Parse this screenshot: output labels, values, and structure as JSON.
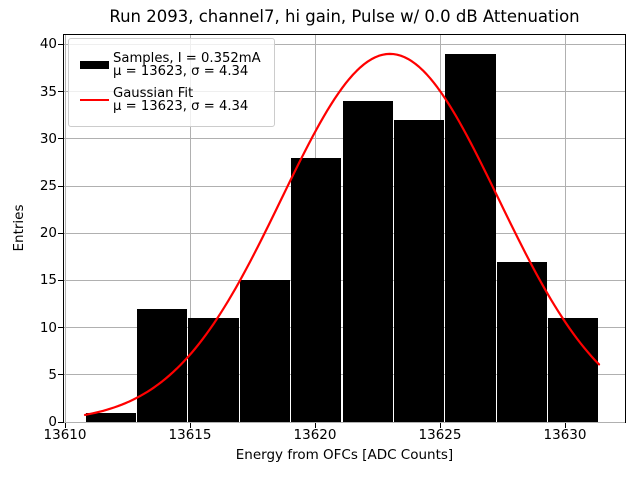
{
  "chart_data": {
    "type": "bar",
    "subtype": "histogram-with-gaussian-fit",
    "title": "Run 2093, channel7, hi gain, Pulse w/ 0.0 dB Attenuation",
    "xlabel": "Energy from OFCs [ADC Counts]",
    "ylabel": "Entries",
    "xlim": [
      13609.96,
      13632.4
    ],
    "ylim": [
      0,
      41
    ],
    "xticks": [
      13610,
      13615,
      13620,
      13625,
      13630
    ],
    "yticks": [
      0,
      5,
      10,
      15,
      20,
      25,
      30,
      35,
      40
    ],
    "grid": true,
    "grid_color": "#b0b0b0",
    "background_color": "#ffffff",
    "histogram": {
      "bin_start": 13610.8,
      "bin_width": 2.056,
      "counts": [
        1,
        12,
        11,
        15,
        28,
        34,
        32,
        39,
        17,
        11
      ],
      "total_entries": 200,
      "color": "#000000"
    },
    "gaussian_fit": {
      "amplitude": 39,
      "mu": 13623,
      "sigma": 4.34,
      "x_start": 13610.8,
      "x_end": 13631.36,
      "color": "#ff0000",
      "line_width": 2.2
    },
    "legend": {
      "border_color": "#cccccc",
      "position": "upper-left",
      "entries": [
        {
          "swatch": "bar",
          "color": "#000000",
          "line1": "Samples, I = 0.352mA",
          "line2": "μ = 13623, σ = 4.34"
        },
        {
          "swatch": "line",
          "color": "#ff0000",
          "line1": "Gaussian Fit",
          "line2": "μ = 13623, σ = 4.34"
        }
      ]
    }
  }
}
